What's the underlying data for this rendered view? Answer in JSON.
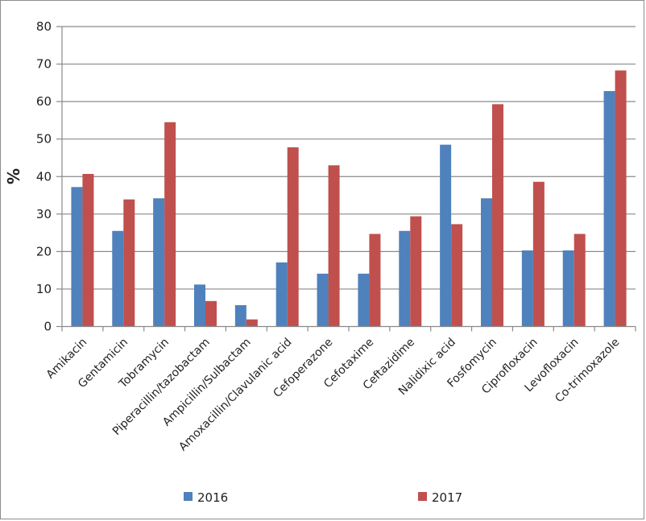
{
  "chart_data": {
    "type": "bar",
    "title": "",
    "xlabel": "",
    "ylabel": "%",
    "ylim": [
      0,
      80
    ],
    "yticks": [
      0,
      10,
      20,
      30,
      40,
      50,
      60,
      70,
      80
    ],
    "grid": true,
    "legend_position": "bottom",
    "categories": [
      "Amikacin",
      "Gentamicin",
      "Tobramycin",
      "Piperacillin/tazobactam",
      "Ampicillin/Sulbactam",
      "Amoxacillin/Clavulanic acid",
      "Cefoperazone",
      "Cefotaxime",
      "Ceftazidime",
      "Nalidixic acid",
      "Fosfomycin",
      "Ciprofloxacin",
      "Levofloxacin",
      "Co-trimoxazole"
    ],
    "series": [
      {
        "name": "2016",
        "color": "#4f81bd",
        "values": [
          37.2,
          25.5,
          34.2,
          11.2,
          5.7,
          17.1,
          14.1,
          14.1,
          25.5,
          48.5,
          34.2,
          20.3,
          20.3,
          62.8
        ]
      },
      {
        "name": "2017",
        "color": "#c0504d",
        "values": [
          40.7,
          33.9,
          54.5,
          6.8,
          1.9,
          47.8,
          43.0,
          24.7,
          29.4,
          27.3,
          59.3,
          38.6,
          24.7,
          68.3
        ]
      }
    ]
  }
}
